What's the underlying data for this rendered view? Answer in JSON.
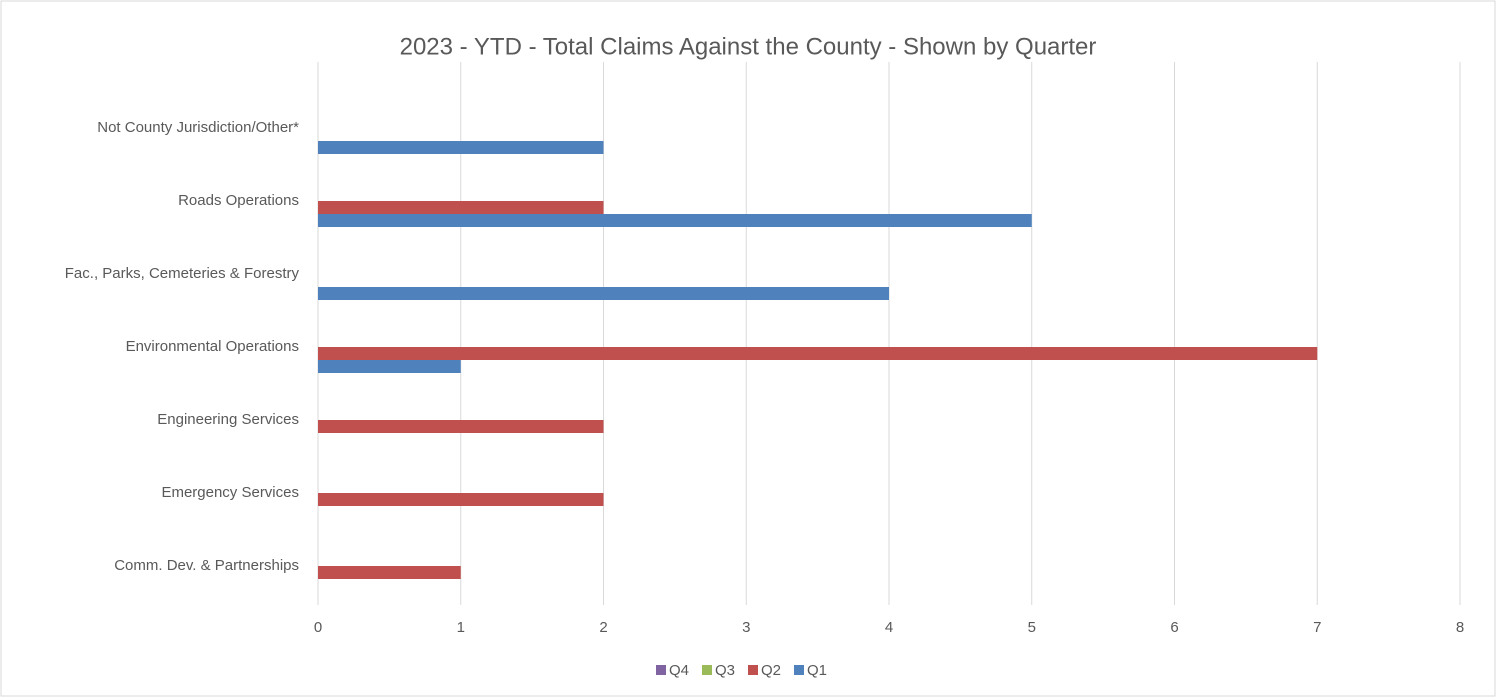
{
  "chart_data": {
    "type": "hbar",
    "title": "2023 - YTD - Total Claims Against the County - Shown by Quarter",
    "categories": [
      "Not County Jurisdiction/Other*",
      "Roads Operations",
      "Fac., Parks, Cemeteries & Forestry",
      "Environmental Operations",
      "Engineering Services",
      "Emergency Services",
      "Comm. Dev. & Partnerships"
    ],
    "series": [
      {
        "name": "Q4",
        "color": "#8064a2",
        "values": [
          0,
          0,
          0,
          0,
          0,
          0,
          0
        ]
      },
      {
        "name": "Q3",
        "color": "#9bbb59",
        "values": [
          0,
          0,
          0,
          0,
          0,
          0,
          0
        ]
      },
      {
        "name": "Q2",
        "color": "#c0504d",
        "values": [
          0,
          2,
          0,
          7,
          2,
          2,
          1
        ]
      },
      {
        "name": "Q1",
        "color": "#4f81bd",
        "values": [
          2,
          5,
          4,
          1,
          0,
          0,
          0
        ]
      }
    ],
    "xlim": [
      0,
      8
    ],
    "xticks": [
      0,
      1,
      2,
      3,
      4,
      5,
      6,
      7,
      8
    ],
    "grid": true,
    "legend": "bottom"
  }
}
